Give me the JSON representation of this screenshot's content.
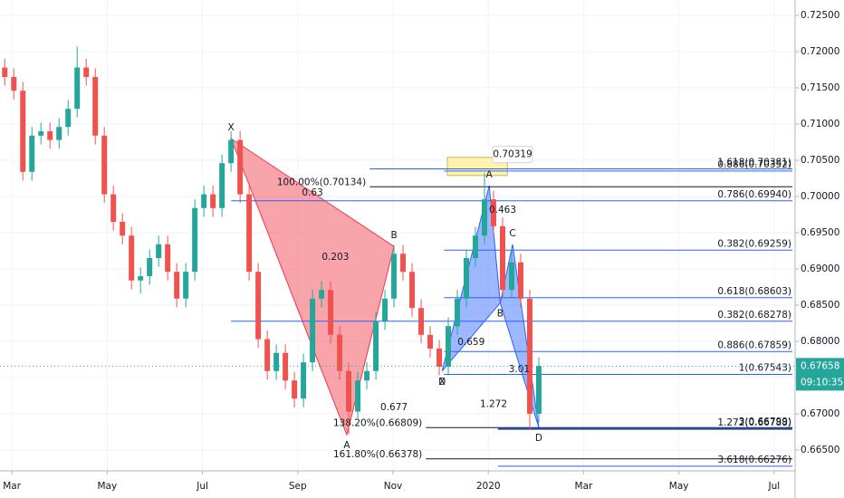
{
  "chart_data": {
    "type": "candlestick",
    "xlim": [
      -0.25,
      16.44
    ],
    "ylim": [
      0.662125,
      0.727125
    ],
    "xticks": [
      {
        "value": 0,
        "label": "Mar"
      },
      {
        "value": 2,
        "label": "May"
      },
      {
        "value": 4,
        "label": "Jul"
      },
      {
        "value": 6,
        "label": "Sep"
      },
      {
        "value": 8,
        "label": "Nov"
      },
      {
        "value": 10,
        "label": "2020"
      },
      {
        "value": 12,
        "label": "Mar"
      },
      {
        "value": 14,
        "label": "May"
      },
      {
        "value": 16,
        "label": "Jul"
      }
    ],
    "yticks": [
      {
        "value": 0.665,
        "label": "0.66500"
      },
      {
        "value": 0.67,
        "label": "0.67000"
      },
      {
        "value": 0.675,
        "label": "0.67500"
      },
      {
        "value": 0.68,
        "label": "0.68000"
      },
      {
        "value": 0.685,
        "label": "0.68500"
      },
      {
        "value": 0.69,
        "label": "0.69000"
      },
      {
        "value": 0.695,
        "label": "0.69500"
      },
      {
        "value": 0.7,
        "label": "0.70000"
      },
      {
        "value": 0.705,
        "label": "0.70500"
      },
      {
        "value": 0.71,
        "label": "0.71000"
      },
      {
        "value": 0.715,
        "label": "0.71500"
      },
      {
        "value": 0.72,
        "label": "0.72000"
      },
      {
        "value": 0.725,
        "label": "0.72500"
      }
    ],
    "grid": true,
    "up_color": "#26a69a",
    "down_color": "#ef5350",
    "x": [
      -0.15,
      0.04,
      0.23,
      0.42,
      0.61,
      0.8,
      0.99,
      1.18,
      1.37,
      1.56,
      1.75,
      1.94,
      2.13,
      2.32,
      2.51,
      2.7,
      2.89,
      3.08,
      3.27,
      3.46,
      3.65,
      3.84,
      4.03,
      4.22,
      4.41,
      4.6,
      4.79,
      4.98,
      5.17,
      5.36,
      5.55,
      5.74,
      5.93,
      6.12,
      6.31,
      6.5,
      6.69,
      6.88,
      7.07,
      7.26,
      7.45,
      7.64,
      7.83,
      8.02,
      8.21,
      8.4,
      8.59,
      8.78,
      8.97,
      9.16,
      9.35,
      9.54,
      9.73,
      9.92,
      10.11,
      10.3,
      10.49,
      10.68,
      10.87,
      11.06
    ],
    "open": [
      0.7178,
      0.7165,
      0.7146,
      0.7034,
      0.7084,
      0.709,
      0.7078,
      0.7096,
      0.7121,
      0.7178,
      0.7165,
      0.7084,
      0.7003,
      0.6965,
      0.6946,
      0.6884,
      0.689,
      0.6915,
      0.6934,
      0.6896,
      0.6859,
      0.6896,
      0.6984,
      0.7003,
      0.6984,
      0.7046,
      0.7078,
      0.7003,
      0.6896,
      0.6803,
      0.6759,
      0.6784,
      0.6746,
      0.6721,
      0.6771,
      0.6859,
      0.6871,
      0.6809,
      0.6759,
      0.6703,
      0.6746,
      0.6759,
      0.6828,
      0.6859,
      0.6921,
      0.6896,
      0.6846,
      0.6809,
      0.679,
      0.6765,
      0.6821,
      0.6859,
      0.6915,
      0.6946,
      0.6996,
      0.6959,
      0.6871,
      0.6909,
      0.6859,
      0.67
    ],
    "high": [
      0.719,
      0.7177,
      0.7158,
      0.7096,
      0.7102,
      0.7102,
      0.7108,
      0.7133,
      0.7207,
      0.719,
      0.7177,
      0.7096,
      0.7015,
      0.6977,
      0.6958,
      0.6902,
      0.6927,
      0.6946,
      0.6946,
      0.6908,
      0.6908,
      0.6996,
      0.7015,
      0.7015,
      0.7058,
      0.709,
      0.709,
      0.7015,
      0.6908,
      0.6815,
      0.6796,
      0.6796,
      0.6758,
      0.6783,
      0.6871,
      0.6883,
      0.6883,
      0.6821,
      0.6771,
      0.6758,
      0.6771,
      0.684,
      0.6871,
      0.6933,
      0.6933,
      0.6908,
      0.6858,
      0.6821,
      0.6802,
      0.6833,
      0.6871,
      0.6927,
      0.6958,
      0.7032,
      0.7008,
      0.6971,
      0.693,
      0.6921,
      0.6871,
      0.6778
    ],
    "low": [
      0.7153,
      0.7134,
      0.7022,
      0.7022,
      0.7072,
      0.7066,
      0.7066,
      0.7084,
      0.7109,
      0.7153,
      0.7072,
      0.6991,
      0.6953,
      0.6934,
      0.6872,
      0.6866,
      0.6878,
      0.6903,
      0.6884,
      0.6847,
      0.6847,
      0.6884,
      0.6972,
      0.6972,
      0.6972,
      0.7034,
      0.6991,
      0.6884,
      0.6791,
      0.6747,
      0.6747,
      0.6734,
      0.6709,
      0.6709,
      0.6759,
      0.6847,
      0.6797,
      0.6747,
      0.6672,
      0.6691,
      0.6734,
      0.6747,
      0.6816,
      0.6847,
      0.6884,
      0.6834,
      0.6797,
      0.6778,
      0.6753,
      0.6753,
      0.6809,
      0.6847,
      0.6903,
      0.6934,
      0.6947,
      0.6859,
      0.6859,
      0.6847,
      0.6679,
      0.6688
    ],
    "close": [
      0.7165,
      0.7146,
      0.7034,
      0.7084,
      0.709,
      0.7078,
      0.7096,
      0.7121,
      0.7178,
      0.7165,
      0.7084,
      0.7003,
      0.6965,
      0.6946,
      0.6884,
      0.689,
      0.6915,
      0.6934,
      0.6896,
      0.6859,
      0.6896,
      0.6984,
      0.7003,
      0.6984,
      0.7046,
      0.7078,
      0.7003,
      0.6896,
      0.6803,
      0.6759,
      0.6784,
      0.6746,
      0.6721,
      0.6771,
      0.6859,
      0.6871,
      0.6809,
      0.6759,
      0.6703,
      0.6746,
      0.6759,
      0.6828,
      0.6859,
      0.6921,
      0.6896,
      0.6846,
      0.6809,
      0.679,
      0.6765,
      0.6821,
      0.6859,
      0.6915,
      0.6946,
      0.6996,
      0.6959,
      0.6871,
      0.6909,
      0.6859,
      0.67,
      0.6766
    ],
    "patterns": [
      {
        "color": "#f23645",
        "triangles": [
          [
            0,
            1,
            2
          ]
        ],
        "points": [
          {
            "label": "X",
            "x": 4.6,
            "y": 0.708
          },
          {
            "label": "A",
            "x": 7.03,
            "y": 0.6671
          },
          {
            "label": "B",
            "x": 8.02,
            "y": 0.6931
          },
          {
            "label": "D",
            "x": 9.03,
            "y": 0.6759
          }
        ]
      },
      {
        "color": "#2962ff",
        "triangles": [
          [
            0,
            1,
            2
          ],
          [
            2,
            3,
            4
          ]
        ],
        "points": [
          {
            "label": "X",
            "x": 9.03,
            "y": 0.6759
          },
          {
            "label": "A",
            "x": 10.02,
            "y": 0.7015
          },
          {
            "label": "B",
            "x": 10.25,
            "y": 0.6853
          },
          {
            "label": "C",
            "x": 10.51,
            "y": 0.6934
          },
          {
            "label": "D",
            "x": 11.06,
            "y": 0.6681
          }
        ]
      }
    ],
    "ratios": [
      {
        "text": "0.63",
        "x": 6.31,
        "y": 0.7005
      },
      {
        "text": "0.203",
        "x": 6.79,
        "y": 0.6916
      },
      {
        "text": "0.677",
        "x": 8.02,
        "y": 0.6709
      },
      {
        "text": "0.659",
        "x": 9.64,
        "y": 0.6799
      },
      {
        "text": "0.463",
        "x": 10.3,
        "y": 0.6981
      },
      {
        "text": "1.272",
        "x": 10.11,
        "y": 0.6713
      },
      {
        "text": "3.01",
        "x": 10.65,
        "y": 0.6761
      }
    ],
    "levels": [
      {
        "value": 0.70381,
        "label": "1.618(0.70381)",
        "x0": 7.51,
        "color": "#2962ff",
        "align": "right"
      },
      {
        "value": 0.70352,
        "label": "0.886(0.70352)",
        "x0": 9.07,
        "color": "#2962ff",
        "align": "right"
      },
      {
        "value": 0.70134,
        "label": "100.00%(0.70134)",
        "x0": 7.51,
        "color": "#131722",
        "align": "left"
      },
      {
        "value": 0.6994,
        "label": "0.786(0.69940)",
        "x0": 4.6,
        "color": "#2962ff",
        "align": "right"
      },
      {
        "value": 0.69259,
        "label": "0.382(0.69259)",
        "x0": 9.07,
        "color": "#2962ff",
        "align": "right"
      },
      {
        "value": 0.68603,
        "label": "0.618(0.68603)",
        "x0": 9.07,
        "color": "#2962ff",
        "align": "right"
      },
      {
        "value": 0.68278,
        "label": "0.382(0.68278)",
        "x0": 4.6,
        "color": "#2962ff",
        "align": "right"
      },
      {
        "value": 0.67859,
        "label": "0.886(0.67859)",
        "x0": 9.07,
        "color": "#2962ff",
        "align": "right"
      },
      {
        "value": 0.67543,
        "label": "1(0.67543)",
        "x0": 9.07,
        "color": "#2962ff",
        "align": "right"
      },
      {
        "value": 0.66809,
        "label": "138.20%(0.66809)",
        "x0": 8.69,
        "color": "#131722",
        "align": "left"
      },
      {
        "value": 0.66788,
        "label": "1.272(0.66788)",
        "x0": 10.2,
        "color": "#131722",
        "align": "right"
      },
      {
        "value": 0.66799,
        "label": "3(0.66799)",
        "x0": 10.2,
        "color": "#2962ff",
        "align": "right"
      },
      {
        "value": 0.66378,
        "label": "161.80%(0.66378)",
        "x0": 8.69,
        "color": "#131722",
        "align": "left"
      },
      {
        "value": 0.66276,
        "label": "3.618(0.66276)",
        "x0": 10.2,
        "color": "#2962ff",
        "align": "right"
      }
    ],
    "highlight_box": {
      "x": [
        9.14,
        10.4
      ],
      "y": [
        0.7029,
        0.7054
      ],
      "color": "#fff3b0"
    },
    "tooltip": {
      "label": "0.70319",
      "x": 10.51,
      "y": 0.7058
    },
    "last_price": {
      "value": 0.67658,
      "label": "0.67658"
    },
    "countdown": "09:10:35"
  }
}
